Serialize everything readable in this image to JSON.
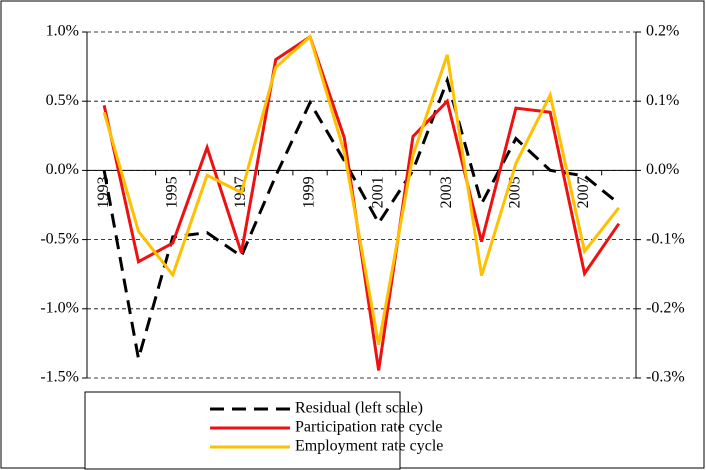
{
  "chart_data": {
    "type": "line",
    "categories": [
      "1993",
      null,
      "1995",
      null,
      "1997",
      null,
      "1999",
      null,
      "2001",
      null,
      "2003",
      null,
      "2005",
      null,
      "2007",
      null
    ],
    "series": [
      {
        "name": "Residual (left scale)",
        "color": "#000000",
        "dash": true,
        "axis": "y",
        "values": [
          0.0,
          -1.36,
          -0.48,
          -0.45,
          -0.62,
          -0.04,
          0.49,
          0.07,
          -0.38,
          0.0,
          0.65,
          -0.24,
          0.23,
          0.0,
          -0.04,
          -0.24
        ]
      },
      {
        "name": "Participation rate cycle",
        "color": "#ee1111",
        "axis": "y2",
        "values": [
          0.094,
          -0.132,
          -0.105,
          0.033,
          -0.119,
          0.16,
          0.193,
          0.047,
          -0.289,
          0.049,
          0.1,
          -0.103,
          0.09,
          0.084,
          -0.149,
          -0.077
        ]
      },
      {
        "name": "Employment rate cycle",
        "color": "#ffc000",
        "axis": "y2",
        "values": [
          0.084,
          -0.088,
          -0.151,
          -0.007,
          -0.032,
          0.149,
          0.193,
          0.026,
          -0.252,
          0.022,
          0.167,
          -0.152,
          0.01,
          0.109,
          -0.117,
          -0.054
        ]
      }
    ],
    "ylim": [
      -1.5,
      1.0
    ],
    "yticks": [
      {
        "value": -1.5,
        "label": "-1.5%"
      },
      {
        "value": -1.0,
        "label": "-1.0%"
      },
      {
        "value": -0.5,
        "label": "-0.5%"
      },
      {
        "value": 0.0,
        "label": "0.0%"
      },
      {
        "value": 0.5,
        "label": "0.5%"
      },
      {
        "value": 1.0,
        "label": "1.0%"
      }
    ],
    "y2lim": [
      -0.3,
      0.2
    ],
    "y2ticks": [
      {
        "value": -0.3,
        "label": "-0.3%"
      },
      {
        "value": -0.2,
        "label": "-0.2%"
      },
      {
        "value": -0.1,
        "label": "-0.1%"
      },
      {
        "value": 0.0,
        "label": "0.0%"
      },
      {
        "value": 0.1,
        "label": "0.1%"
      },
      {
        "value": 0.2,
        "label": "0.2%"
      }
    ],
    "grid": true
  }
}
